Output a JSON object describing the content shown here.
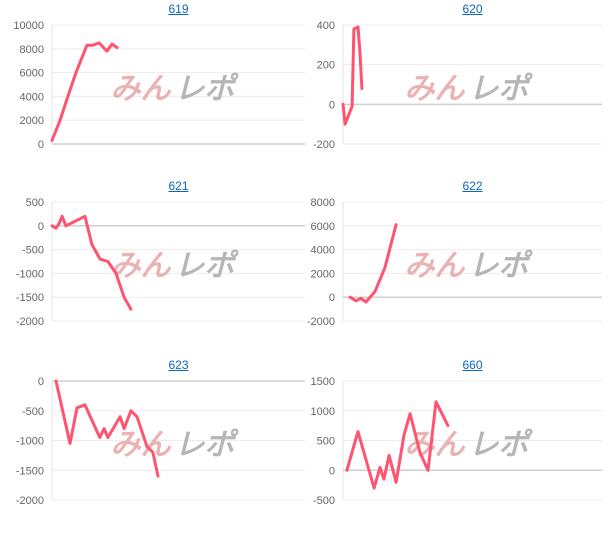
{
  "logo": {
    "text_a": "みん",
    "text_b": "レポ",
    "color_a": "#e8a5a8",
    "color_b": "#aaaaaa"
  },
  "line_color": "#ff5470",
  "chart_data": [
    {
      "type": "line",
      "title": "619",
      "ylim": [
        0,
        10000
      ],
      "yticks": [
        0,
        2000,
        4000,
        6000,
        8000,
        10000
      ],
      "xlim": [
        0,
        100
      ],
      "grid": true,
      "x": [
        0,
        3.2,
        6.3,
        9.5,
        13.8,
        16.2,
        18.6,
        21.7,
        23.7,
        25.7
      ],
      "y": [
        300,
        2000,
        4000,
        6000,
        8300,
        8300,
        8500,
        7800,
        8400,
        8100
      ]
    },
    {
      "type": "line",
      "title": "620",
      "ylim": [
        -200,
        400
      ],
      "yticks": [
        -200,
        0,
        200,
        400
      ],
      "xlim": [
        0,
        100
      ],
      "grid": true,
      "x": [
        0,
        0.8,
        3.5,
        4.2,
        5.8,
        6.6,
        7.3
      ],
      "y": [
        0,
        -100,
        -10,
        380,
        390,
        250,
        80
      ]
    },
    {
      "type": "line",
      "title": "621",
      "ylim": [
        -2000,
        500
      ],
      "yticks": [
        -2000,
        -1500,
        -1000,
        -500,
        0,
        500
      ],
      "xlim": [
        0,
        100
      ],
      "grid": true,
      "x": [
        0,
        1.6,
        2.8,
        4,
        5.5,
        13,
        15.8,
        19,
        22.1,
        25.3,
        28.5,
        31.2
      ],
      "y": [
        0,
        -50,
        50,
        200,
        0,
        200,
        -400,
        -700,
        -750,
        -1000,
        -1500,
        -1750
      ]
    },
    {
      "type": "line",
      "title": "622",
      "ylim": [
        -2000,
        8000
      ],
      "yticks": [
        -2000,
        0,
        2000,
        4000,
        6000,
        8000
      ],
      "xlim": [
        0,
        100
      ],
      "grid": true,
      "x": [
        2.7,
        5,
        6.9,
        8.9,
        12.4,
        16.2,
        20.5
      ],
      "y": [
        0,
        -300,
        -100,
        -400,
        500,
        2500,
        6100
      ]
    },
    {
      "type": "line",
      "title": "623",
      "ylim": [
        -2000,
        0
      ],
      "yticks": [
        -2000,
        -1500,
        -1000,
        -500,
        0
      ],
      "xlim": [
        0,
        100
      ],
      "grid": true,
      "x": [
        1.6,
        7.1,
        9.9,
        13,
        18.9,
        20.6,
        22.1,
        26.9,
        28.5,
        31.2,
        33.6,
        37.5,
        39.9,
        41.9
      ],
      "y": [
        0,
        -1050,
        -450,
        -400,
        -950,
        -800,
        -950,
        -600,
        -800,
        -500,
        -600,
        -1100,
        -1200,
        -1600
      ]
    },
    {
      "type": "line",
      "title": "660",
      "ylim": [
        -500,
        1500
      ],
      "yticks": [
        -500,
        0,
        500,
        1000,
        1500
      ],
      "xlim": [
        0,
        100
      ],
      "grid": true,
      "x": [
        1.5,
        5.8,
        12,
        14.3,
        15.8,
        17.8,
        20.5,
        23.6,
        25.9,
        29.7,
        32.8,
        35.9,
        40.5
      ],
      "y": [
        0,
        650,
        -300,
        50,
        -150,
        250,
        -200,
        600,
        950,
        300,
        0,
        1150,
        750
      ]
    }
  ]
}
